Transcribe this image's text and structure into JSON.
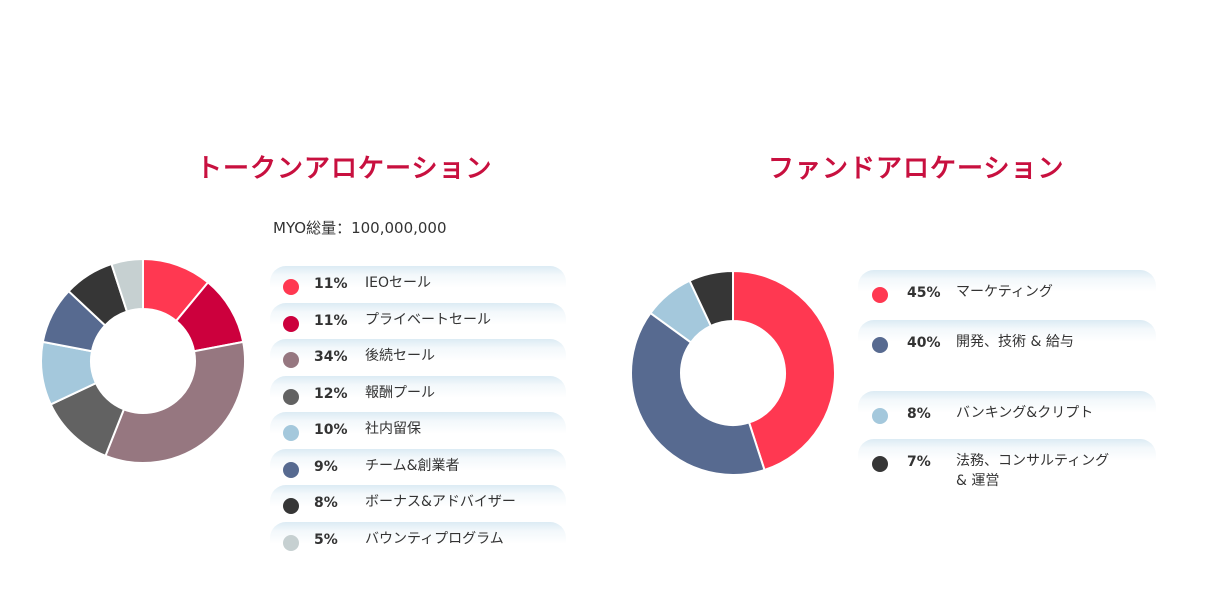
{
  "token_section": {
    "title": "トークンアロケーション",
    "total_label": "MYO総量：100,000,000"
  },
  "fund_section": {
    "title": "ファンドアロケーション"
  },
  "chart_data": [
    {
      "type": "pie",
      "title": "トークンアロケーション",
      "donut": true,
      "legend_position": "right",
      "categories": [
        "IEOセール",
        "プライベートセール",
        "後続セール",
        "報酬プール",
        "社内留保",
        "チーム&創業者",
        "ボーナス&アドバイザー",
        "バウンティプログラム"
      ],
      "values": [
        11,
        11,
        34,
        12,
        10,
        9,
        8,
        5
      ],
      "value_labels": [
        "11%",
        "11%",
        "34%",
        "12%",
        "10%",
        "9%",
        "8%",
        "5%"
      ],
      "colors": [
        "#ff3851",
        "#cc003d",
        "#967780",
        "#626262",
        "#a4c8dc",
        "#576a90",
        "#363636",
        "#c6d0d1"
      ]
    },
    {
      "type": "pie",
      "title": "ファンドアロケーション",
      "donut": true,
      "legend_position": "right",
      "categories": [
        "マーケティング",
        "開発、技術 & 給与",
        "バンキング&クリプト",
        "法務、コンサルティング & 運営"
      ],
      "values": [
        45,
        40,
        8,
        7
      ],
      "value_labels": [
        "45%",
        "40%",
        "8%",
        "7%"
      ],
      "colors": [
        "#ff3851",
        "#576a90",
        "#a4c8dc",
        "#363636"
      ]
    }
  ]
}
